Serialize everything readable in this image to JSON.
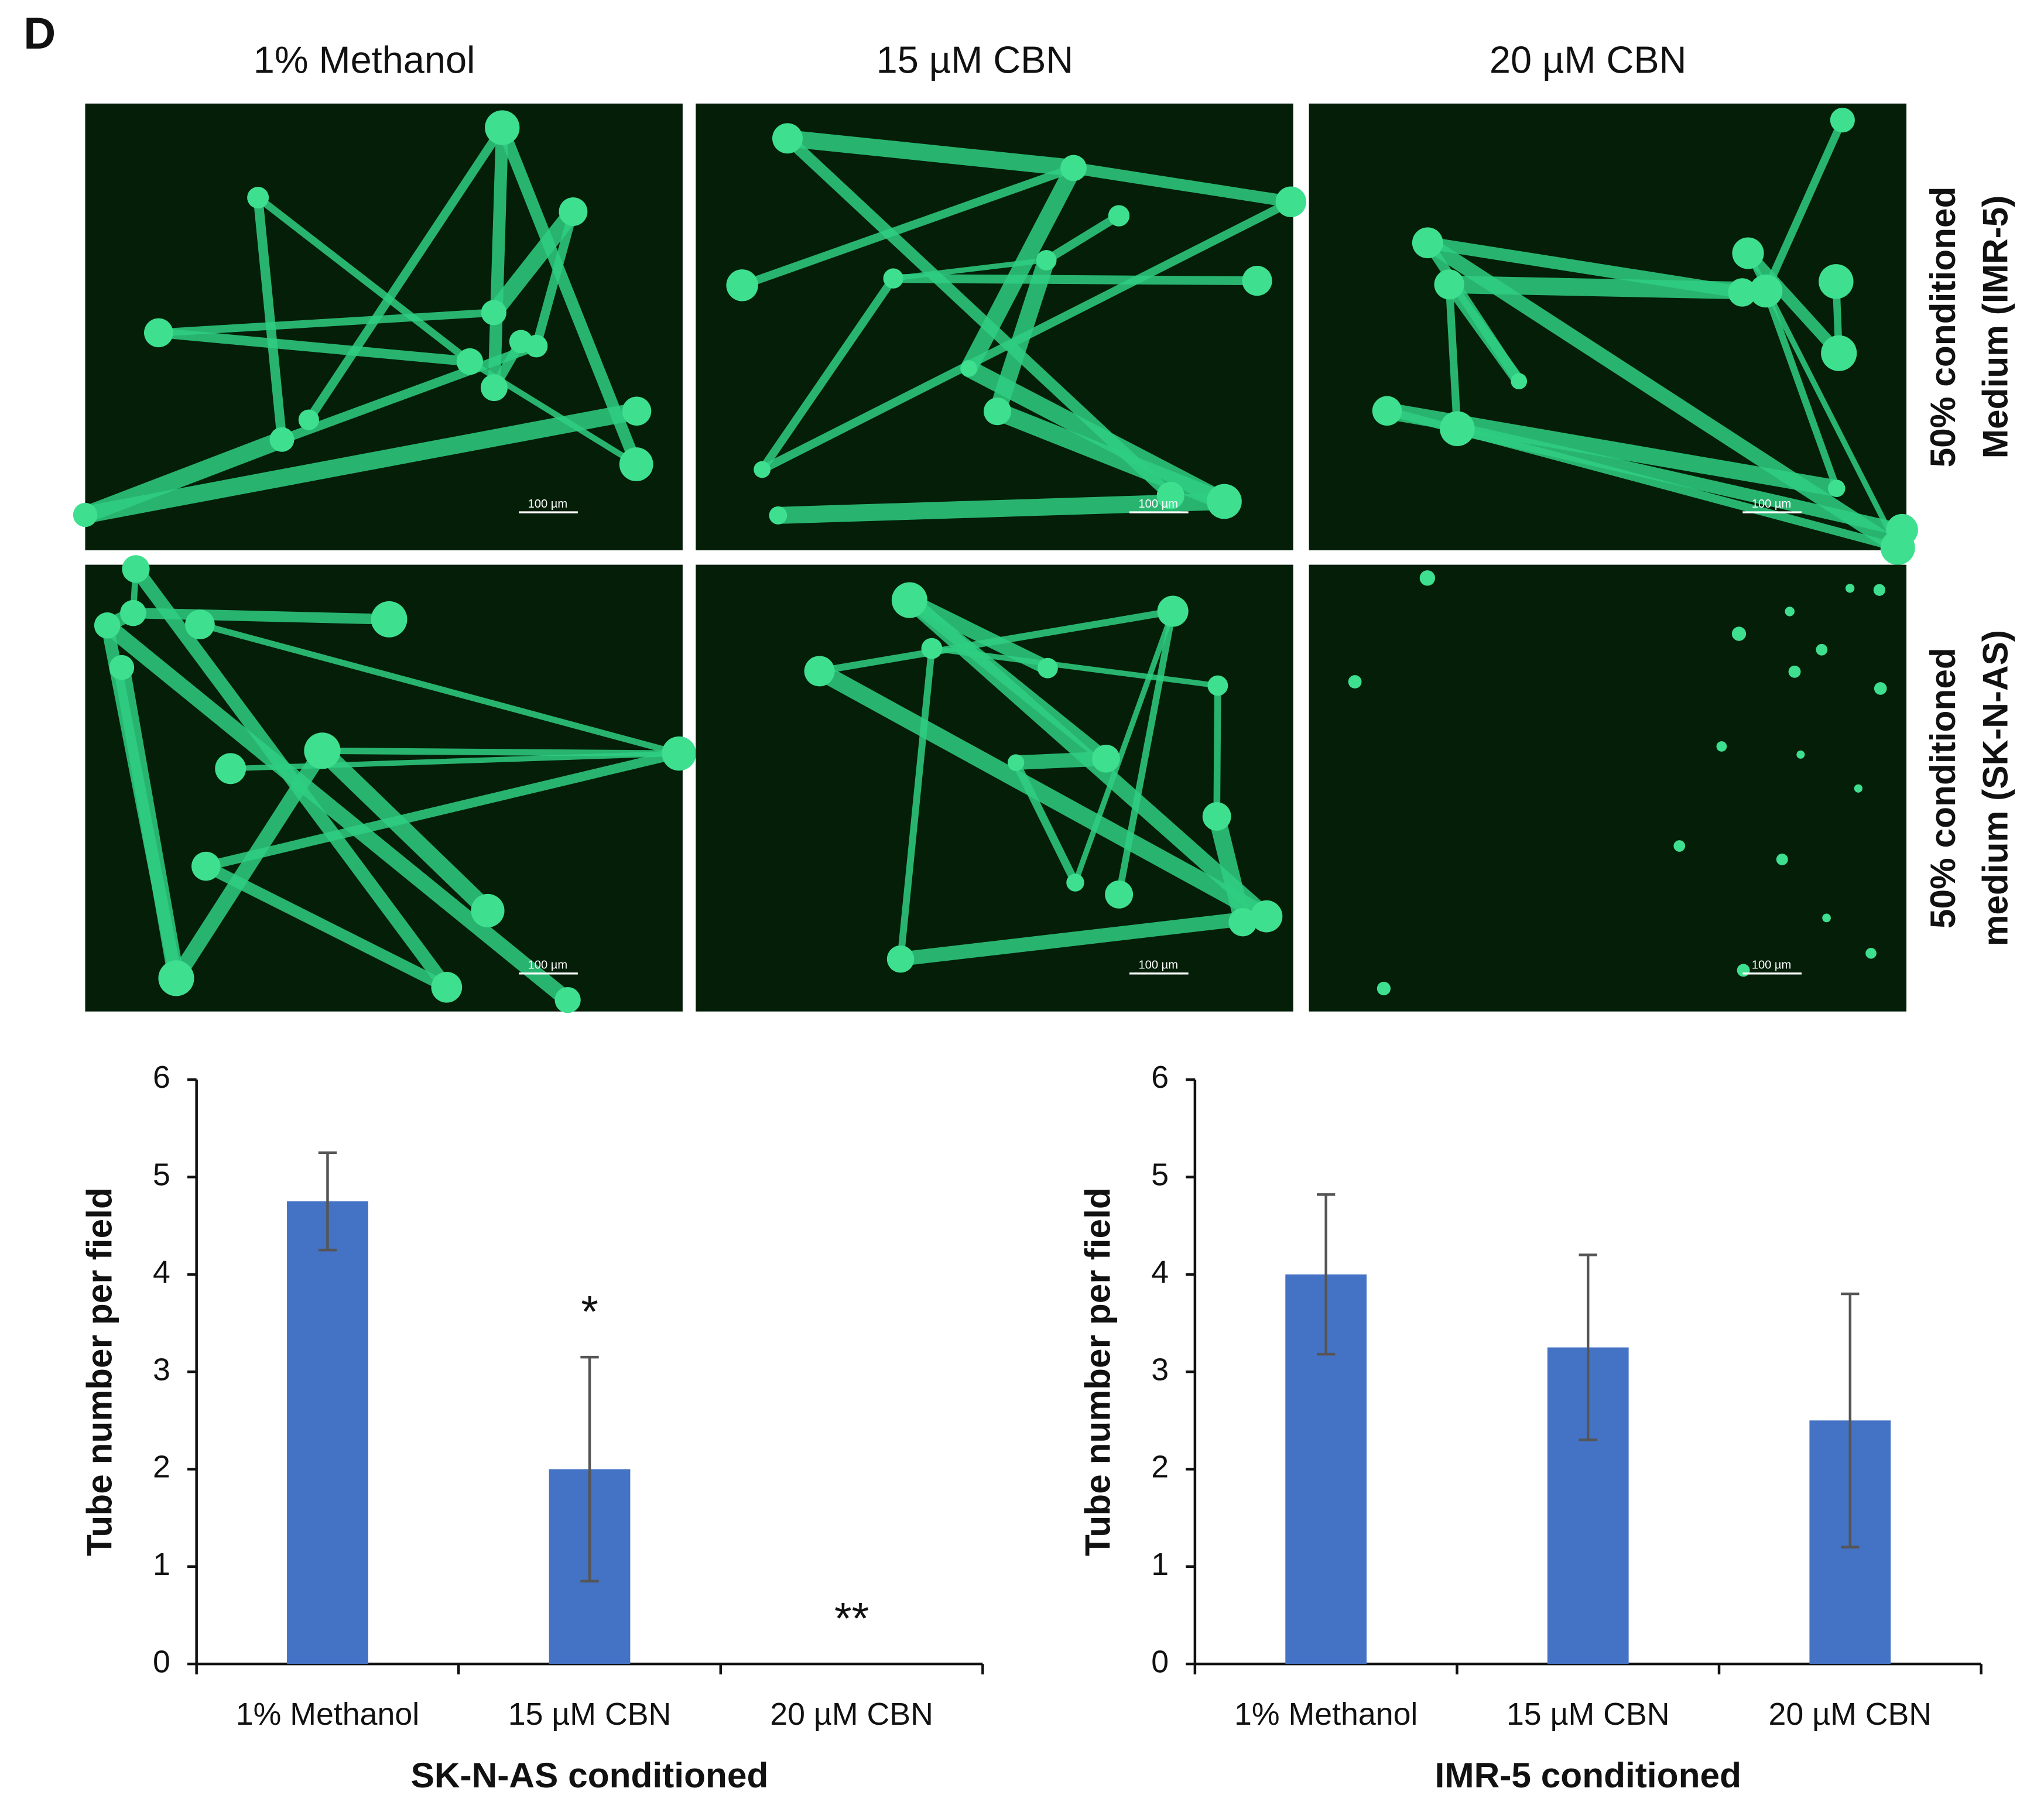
{
  "figure": {
    "panel_label": "D",
    "column_titles": [
      "1% Methanol",
      "15 µM CBN",
      "20 µM CBN"
    ],
    "row_labels": [
      [
        "50% conditioned",
        "Medium (IMR-5)"
      ],
      [
        "50% conditioned",
        "medium (SK-N-AS)"
      ]
    ],
    "scale_bar_labels": [
      "100 µm",
      "100 µm",
      "100 µm",
      "100 µm",
      "100 µm",
      "100 µm"
    ]
  },
  "chart_data": [
    {
      "type": "bar",
      "xlabel": "SK-N-AS conditioned",
      "ylabel": "Tube number per field",
      "categories": [
        "1% Methanol",
        "15 µM CBN",
        "20 µM CBN"
      ],
      "values": [
        4.75,
        2.0,
        0
      ],
      "errors": [
        0.5,
        1.15,
        0
      ],
      "color": "#4472c4",
      "annotations": [
        {
          "text": "*",
          "category": "15 µM CBN"
        },
        {
          "text": "**",
          "category": "20 µM CBN"
        }
      ],
      "ylim": [
        0,
        6
      ],
      "yticks": [
        0,
        1,
        2,
        3,
        4,
        5,
        6
      ]
    },
    {
      "type": "bar",
      "xlabel": "IMR-5 conditioned",
      "ylabel": "Tube number per field",
      "categories": [
        "1% Methanol",
        "15 µM CBN",
        "20 µM CBN"
      ],
      "values": [
        4.0,
        3.25,
        2.5
      ],
      "errors": [
        0.82,
        0.95,
        1.3
      ],
      "color": "#4472c4",
      "ylim": [
        0,
        6
      ],
      "yticks": [
        0,
        1,
        2,
        3,
        4,
        5,
        6
      ]
    }
  ]
}
